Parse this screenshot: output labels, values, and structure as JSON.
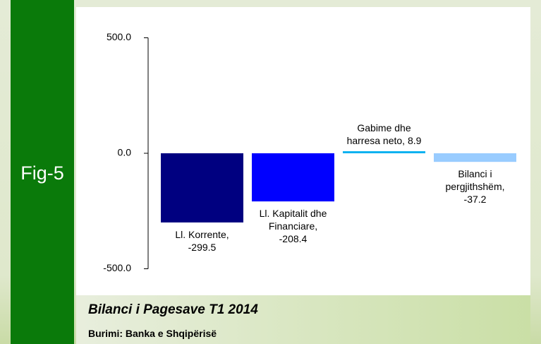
{
  "chart_data": {
    "type": "bar",
    "figure_label": "Fig-5",
    "title": "Bilanci i Pagesave T1 2014",
    "source": "Burimi: Banka e Shqipërisë",
    "values": [
      -299.5,
      -208.4,
      8.9,
      -37.2
    ],
    "value_labels": [
      "Ll. Korrente, -299.5",
      "Ll. Kapitalit dhe Financiare, -208.4",
      "Gabime dhe harresa neto, 8.9",
      "Bilanci i pergjithshëm, -37.2"
    ],
    "colors": [
      "#000080",
      "#0000ff",
      "#00b0f0",
      "#99ccff"
    ],
    "ylim": [
      -500,
      500
    ],
    "yticks": [
      {
        "value": -500,
        "label": "-500.0"
      },
      {
        "value": 0,
        "label": "0.0"
      },
      {
        "value": 500,
        "label": "500.0"
      }
    ]
  }
}
